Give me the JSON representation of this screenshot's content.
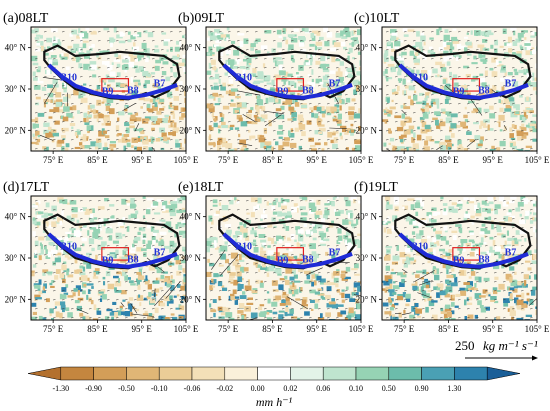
{
  "chart_data": {
    "type": "heatmap",
    "panels": [
      {
        "label": "(a)08LT"
      },
      {
        "label": "(b)09LT"
      },
      {
        "label": "(c)10LT"
      },
      {
        "label": "(d)17LT"
      },
      {
        "label": "(e)18LT"
      },
      {
        "label": "(f)19LT"
      }
    ],
    "x_ticks": [
      "75° E",
      "85° E",
      "95° E",
      "105° E"
    ],
    "y_ticks": [
      "40° N",
      "30° N",
      "20° N"
    ],
    "x_range_deg_E": [
      70,
      105
    ],
    "y_range_deg_N": [
      15,
      45
    ],
    "box_labels": [
      "B10",
      "B9",
      "B8",
      "B7"
    ],
    "vector_reference": {
      "value": "250",
      "units": "kg m⁻¹ s⁻¹"
    },
    "colorbar": {
      "ticks": [
        "-1.30",
        "-0.90",
        "-0.50",
        "-0.10",
        "-0.06",
        "-0.02",
        "0.00",
        "0.02",
        "0.06",
        "0.10",
        "0.50",
        "0.90",
        "1.30"
      ],
      "label": "mm h⁻¹",
      "colors": [
        "#b3702e",
        "#c4863f",
        "#d39e58",
        "#e0b676",
        "#ebcd97",
        "#f3e0b8",
        "#faf0da",
        "#ffffff",
        "#e3f3e8",
        "#bfe5cf",
        "#96d3b4",
        "#6cbcab",
        "#4aa0b4",
        "#2d82ad",
        "#1a5f98"
      ]
    }
  }
}
